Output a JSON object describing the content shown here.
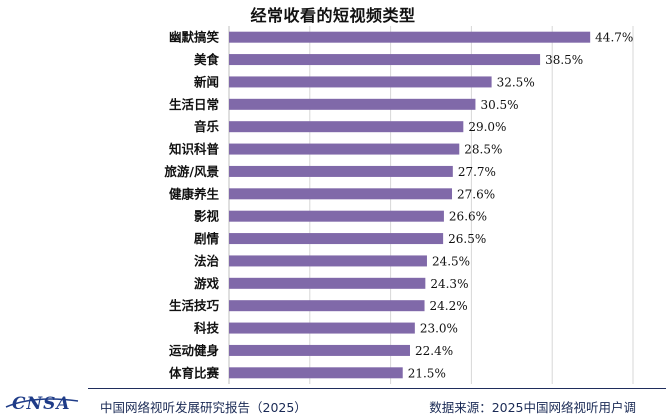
{
  "chart_data": {
    "type": "bar",
    "orientation": "horizontal",
    "title": "经常收看的短视频类型",
    "categories": [
      "幽默搞笑",
      "美食",
      "新闻",
      "生活日常",
      "音乐",
      "知识科普",
      "旅游/风景",
      "健康养生",
      "影视",
      "剧情",
      "法治",
      "游戏",
      "生活技巧",
      "科技",
      "运动健身",
      "体育比赛"
    ],
    "values": [
      44.7,
      38.5,
      32.5,
      30.5,
      29.0,
      28.5,
      27.7,
      27.6,
      26.6,
      26.5,
      24.5,
      24.3,
      24.2,
      23.0,
      22.4,
      21.5
    ],
    "value_labels": [
      "44.7%",
      "38.5%",
      "32.5%",
      "30.5%",
      "29.0%",
      "28.5%",
      "27.7%",
      "27.6%",
      "26.6%",
      "26.5%",
      "24.5%",
      "24.3%",
      "24.2%",
      "23.0%",
      "22.4%",
      "21.5%"
    ],
    "xlim": [
      0,
      50
    ],
    "grid": true,
    "bar_color": "#8069a9"
  },
  "footer": {
    "logo": "CNSA",
    "report": "中国网络视听发展研究报告（2025）",
    "source": "数据来源：2025中国网络视听用户调"
  }
}
